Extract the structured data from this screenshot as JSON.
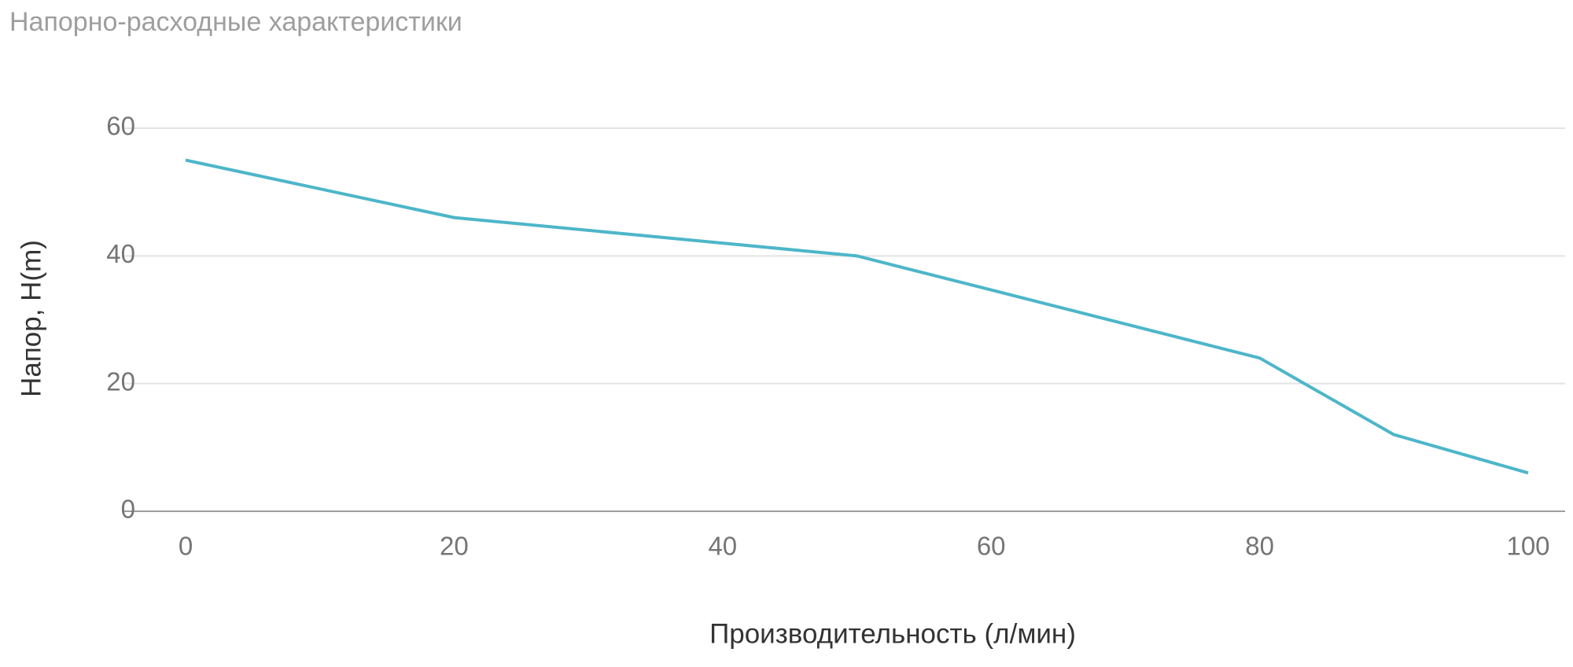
{
  "chart_data": {
    "type": "line",
    "title": "Напорно-расходные характеристики",
    "x_label": "Производительность (л/мин)",
    "y_label": "Напор, H(m)",
    "series": [
      {
        "color": "#4db6c9",
        "x": [
          0,
          20,
          40,
          50,
          80,
          90,
          100
        ],
        "values": [
          55,
          46,
          42,
          40,
          24,
          12,
          6
        ]
      }
    ],
    "xlim": [
      0,
      100
    ],
    "xticks": [
      0,
      20,
      40,
      60,
      80,
      100
    ],
    "ylim": [
      0,
      60
    ],
    "yticks": [
      0,
      20,
      40,
      60
    ],
    "grid": true
  }
}
